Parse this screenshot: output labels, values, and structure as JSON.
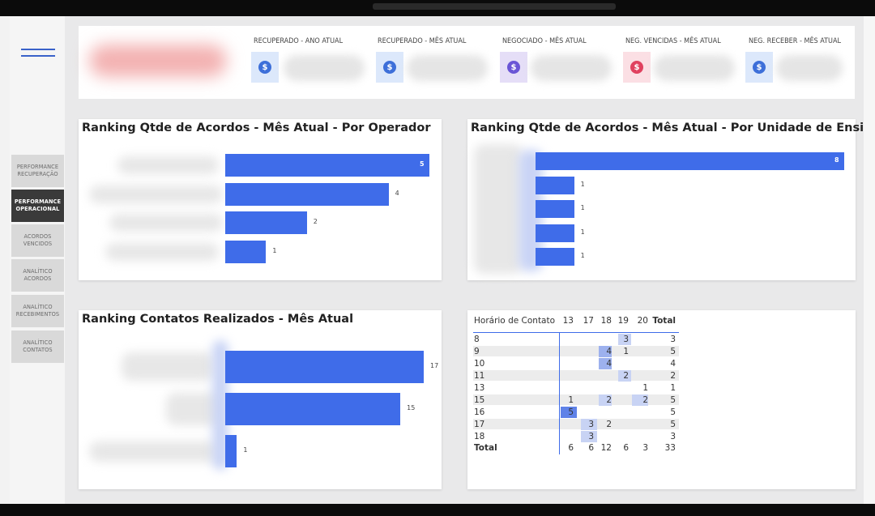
{
  "nav": {
    "items": [
      {
        "label": "PERFORMANCE RECUPERAÇÃO",
        "active": false
      },
      {
        "label": "PERFORMANCE OPERACIONAL",
        "active": true
      },
      {
        "label": "ACORDOS VENCIDOS",
        "active": false
      },
      {
        "label": "ANALÍTICO ACORDOS",
        "active": false
      },
      {
        "label": "ANALÍTICO RECEBIMENTOS",
        "active": false
      },
      {
        "label": "ANALÍTICO CONTATOS",
        "active": false
      }
    ]
  },
  "kpis": [
    {
      "title": "RECUPERADO - ANO ATUAL",
      "icon": "dollar-coin-icon",
      "icon_bg": "#dce8fb",
      "coin": "#3d6fd9"
    },
    {
      "title": "RECUPERADO - MÊS ATUAL",
      "icon": "dollar-coin-icon",
      "icon_bg": "#dce8fb",
      "coin": "#3d6fd9"
    },
    {
      "title": "NEGOCIADO - MÊS ATUAL",
      "icon": "dollar-coin-icon",
      "icon_bg": "#e5def7",
      "coin": "#6a55d6"
    },
    {
      "title": "NEG. VENCIDAS - MÊS ATUAL",
      "icon": "dollar-coin-icon",
      "icon_bg": "#fbdfe4",
      "coin": "#e0415f"
    },
    {
      "title": "NEG. RECEBER - MÊS ATUAL",
      "icon": "dollar-coin-icon",
      "icon_bg": "#dce8fb",
      "coin": "#3d6fd9"
    }
  ],
  "chart_data": [
    {
      "type": "bar",
      "title": "Ranking Qtde de Acordos - Mês Atual - Por Operador",
      "orientation": "horizontal",
      "values": [
        5,
        4,
        2,
        1
      ],
      "bar_color": "#3f6ce9"
    },
    {
      "type": "bar",
      "title": "Ranking Qtde de Acordos - Mês Atual - Por Unidade de Ensino",
      "orientation": "horizontal",
      "values": [
        8,
        1,
        1,
        1,
        1
      ],
      "bar_color": "#3f6ce9"
    },
    {
      "type": "bar",
      "title": "Ranking Contatos Realizados - Mês Atual",
      "orientation": "horizontal",
      "values": [
        17,
        15,
        1
      ],
      "bar_color": "#3f6ce9"
    },
    {
      "type": "table",
      "row_header": "Horário de Contato",
      "columns": [
        "13",
        "17",
        "18",
        "19",
        "20",
        "Total"
      ],
      "rows": [
        {
          "label": "8",
          "cells": [
            "",
            "",
            "",
            "3",
            "",
            "3"
          ]
        },
        {
          "label": "9",
          "cells": [
            "",
            "",
            "4",
            "1",
            "",
            "5"
          ]
        },
        {
          "label": "10",
          "cells": [
            "",
            "",
            "4",
            "",
            "",
            "4"
          ]
        },
        {
          "label": "11",
          "cells": [
            "",
            "",
            "",
            "2",
            "",
            "2"
          ]
        },
        {
          "label": "13",
          "cells": [
            "",
            "",
            "",
            "",
            "1",
            "1"
          ]
        },
        {
          "label": "15",
          "cells": [
            "1",
            "",
            "2",
            "",
            "2",
            "5"
          ]
        },
        {
          "label": "16",
          "cells": [
            "5",
            "",
            "",
            "",
            "",
            "5"
          ]
        },
        {
          "label": "17",
          "cells": [
            "",
            "3",
            "2",
            "",
            "",
            "5"
          ]
        },
        {
          "label": "18",
          "cells": [
            "",
            "3",
            "",
            "",
            "",
            "3"
          ]
        },
        {
          "label": "Total",
          "cells": [
            "6",
            "6",
            "12",
            "6",
            "3",
            "33"
          ]
        }
      ]
    }
  ]
}
